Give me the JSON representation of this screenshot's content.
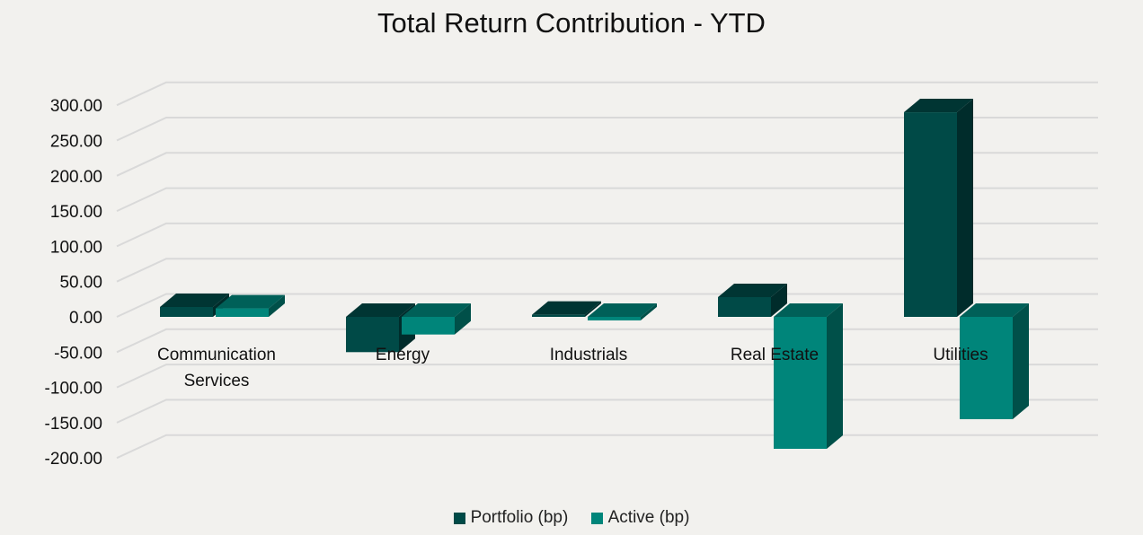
{
  "chart_data": {
    "type": "bar",
    "title": "Total Return Contribution - YTD",
    "categories": [
      "Communication Services",
      "Energy",
      "Industrials",
      "Real Estate",
      "Utilities"
    ],
    "category_lines": [
      [
        "Communication",
        "Services"
      ],
      [
        "Energy"
      ],
      [
        "Industrials"
      ],
      [
        "Real Estate"
      ],
      [
        "Utilities"
      ]
    ],
    "series": [
      {
        "name": "Portfolio (bp)",
        "values": [
          14,
          -50,
          3,
          28,
          290
        ],
        "color": "#004a47"
      },
      {
        "name": "Active (bp)",
        "values": [
          12,
          -25,
          -5,
          -187,
          -145
        ],
        "color": "#00857a"
      }
    ],
    "ylim": [
      -200,
      300
    ],
    "yticks": [
      "300.00",
      "250.00",
      "200.00",
      "150.00",
      "100.00",
      "50.00",
      "0.00",
      "-50.00",
      "-100.00",
      "-150.00",
      "-200.00"
    ],
    "ytick_values": [
      300,
      250,
      200,
      150,
      100,
      50,
      0,
      -50,
      -100,
      -150,
      -200
    ],
    "grid": true,
    "three_d": true,
    "legend_position": "bottom"
  }
}
